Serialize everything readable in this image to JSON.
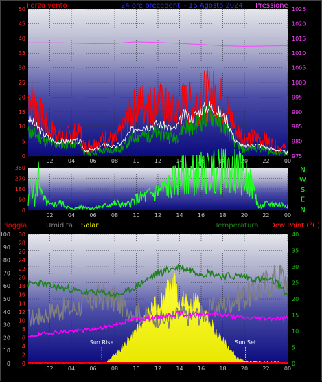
{
  "header": {
    "wind_title": "Forza vento",
    "date_title": "24 ore precedenti - 16 Agosto 2024",
    "pressure_title": "Pressione",
    "rain_title": "Pioggia",
    "humidity_title": "Umidita",
    "solar_title": "Solar",
    "temperature_title": "Temperatura",
    "dewpoint_title": "Dew Point (°C)"
  },
  "colors": {
    "wind": "#ff0000",
    "gust_avg": "#ffffff",
    "wind_avg": "#00a000",
    "pressure": "#ff40ff",
    "direction": "#22ff22",
    "rain": "#ff0000",
    "humidity": "#808080",
    "solar": "#ffff00",
    "temperature": "#208020",
    "dewpoint": "#ff00ff"
  },
  "chart_data": [
    {
      "type": "line",
      "name": "wind_pressure",
      "x_ticks": [
        "02",
        "04",
        "06",
        "08",
        "10",
        "12",
        "14",
        "16",
        "18",
        "20",
        "22",
        "00"
      ],
      "left_axis": {
        "label": "Forza vento",
        "range": [
          0,
          50
        ],
        "ticks": [
          0,
          5,
          10,
          15,
          20,
          25,
          30,
          35,
          40,
          45,
          50
        ]
      },
      "right_axis": {
        "label": "Pressione",
        "range": [
          975,
          1025
        ],
        "ticks": [
          975,
          980,
          985,
          990,
          995,
          1000,
          1005,
          1010,
          1015,
          1020,
          1025
        ]
      },
      "series": [
        {
          "name": "Forza vento",
          "axis": "left",
          "points": [
            [
              0,
              20
            ],
            [
              0.8,
              16
            ],
            [
              1.6,
              10
            ],
            [
              2.4,
              8
            ],
            [
              3.2,
              6
            ],
            [
              4.0,
              7
            ],
            [
              4.8,
              8
            ],
            [
              5.2,
              3
            ],
            [
              6.0,
              4
            ],
            [
              7.2,
              6
            ],
            [
              8.0,
              5
            ],
            [
              8.8,
              9
            ],
            [
              9.6,
              15
            ],
            [
              10.4,
              18
            ],
            [
              11.2,
              17
            ],
            [
              12.0,
              18
            ],
            [
              12.8,
              16
            ],
            [
              13.6,
              14
            ],
            [
              14.4,
              18
            ],
            [
              15.2,
              17
            ],
            [
              16.0,
              20
            ],
            [
              16.8,
              21
            ],
            [
              17.6,
              20
            ],
            [
              18.4,
              16
            ],
            [
              19.2,
              9
            ],
            [
              20.0,
              6
            ],
            [
              21.0,
              6
            ],
            [
              22.0,
              5
            ],
            [
              23.0,
              3
            ],
            [
              24.0,
              2
            ]
          ]
        },
        {
          "name": "Gust avg",
          "axis": "left",
          "points": [
            [
              0,
              13
            ],
            [
              0.8,
              10
            ],
            [
              1.6,
              7
            ],
            [
              2.4,
              5
            ],
            [
              3.2,
              5
            ],
            [
              4.0,
              5
            ],
            [
              4.8,
              5
            ],
            [
              5.2,
              2
            ],
            [
              6.0,
              2
            ],
            [
              7.2,
              4
            ],
            [
              8.0,
              3
            ],
            [
              8.8,
              5
            ],
            [
              9.6,
              9
            ],
            [
              10.4,
              10
            ],
            [
              11.2,
              10
            ],
            [
              12.0,
              11
            ],
            [
              12.8,
              10
            ],
            [
              13.6,
              9
            ],
            [
              14.4,
              14
            ],
            [
              15.2,
              13
            ],
            [
              16.0,
              16
            ],
            [
              16.8,
              17
            ],
            [
              17.6,
              15
            ],
            [
              18.4,
              12
            ],
            [
              19.2,
              5
            ],
            [
              20.0,
              3
            ],
            [
              21.0,
              4
            ],
            [
              22.0,
              3
            ],
            [
              23.0,
              2
            ],
            [
              24.0,
              1
            ]
          ]
        },
        {
          "name": "Wind avg",
          "axis": "left",
          "points": [
            [
              0,
              8
            ],
            [
              0.8,
              7
            ],
            [
              1.6,
              5
            ],
            [
              2.4,
              4
            ],
            [
              3.2,
              4
            ],
            [
              4.0,
              4
            ],
            [
              4.8,
              4
            ],
            [
              5.2,
              1
            ],
            [
              6.0,
              1
            ],
            [
              7.2,
              2
            ],
            [
              8.0,
              2
            ],
            [
              8.8,
              3
            ],
            [
              9.6,
              6
            ],
            [
              10.4,
              7
            ],
            [
              11.2,
              7
            ],
            [
              12.0,
              8
            ],
            [
              12.8,
              7
            ],
            [
              13.6,
              6
            ],
            [
              14.4,
              10
            ],
            [
              15.2,
              10
            ],
            [
              16.0,
              12
            ],
            [
              16.8,
              14
            ],
            [
              17.6,
              12
            ],
            [
              18.4,
              9
            ],
            [
              19.2,
              4
            ],
            [
              20.0,
              2
            ],
            [
              21.0,
              3
            ],
            [
              22.0,
              2
            ],
            [
              23.0,
              1
            ],
            [
              24.0,
              1
            ]
          ]
        },
        {
          "name": "Pressione",
          "axis": "right",
          "points": [
            [
              0,
              1013.5
            ],
            [
              3,
              1013.5
            ],
            [
              6,
              1013.2
            ],
            [
              8,
              1013.3
            ],
            [
              10,
              1013.8
            ],
            [
              12,
              1013.6
            ],
            [
              14,
              1013.3
            ],
            [
              16,
              1012.9
            ],
            [
              18,
              1012.5
            ],
            [
              20,
              1012.3
            ],
            [
              22,
              1012.4
            ],
            [
              24,
              1012.5
            ]
          ]
        }
      ]
    },
    {
      "type": "line",
      "name": "wind_direction",
      "x_ticks": [
        "02",
        "04",
        "06",
        "08",
        "10",
        "12",
        "14",
        "16",
        "18",
        "20",
        "22",
        "00"
      ],
      "left_axis": {
        "range": [
          0,
          360
        ],
        "ticks": [
          0,
          90,
          180,
          270,
          360
        ]
      },
      "right_axis": {
        "labels": [
          "N",
          "W",
          "S",
          "E",
          "N"
        ]
      },
      "series": [
        {
          "name": "Direction",
          "points": [
            [
              0,
              40
            ],
            [
              0.3,
              280
            ],
            [
              0.6,
              60
            ],
            [
              1.0,
              330
            ],
            [
              1.3,
              100
            ],
            [
              2.0,
              40
            ],
            [
              3.0,
              60
            ],
            [
              4.0,
              10
            ],
            [
              5.0,
              30
            ],
            [
              6.0,
              15
            ],
            [
              7.0,
              35
            ],
            [
              8.0,
              60
            ],
            [
              9.0,
              40
            ],
            [
              10.0,
              90
            ],
            [
              11.0,
              120
            ],
            [
              12.0,
              160
            ],
            [
              13.0,
              200
            ],
            [
              14.0,
              290
            ],
            [
              15.0,
              300
            ],
            [
              16.0,
              310
            ],
            [
              17.0,
              320
            ],
            [
              18.0,
              330
            ],
            [
              19.0,
              330
            ],
            [
              20.0,
              300
            ],
            [
              21.0,
              150
            ],
            [
              21.3,
              20
            ],
            [
              22.0,
              50
            ],
            [
              23.0,
              50
            ],
            [
              24.0,
              50
            ]
          ]
        }
      ]
    },
    {
      "type": "line",
      "name": "rain_humidity_solar_temperature",
      "x_ticks": [
        "02",
        "04",
        "06",
        "08",
        "10",
        "12",
        "14",
        "16",
        "18",
        "20",
        "22",
        "00"
      ],
      "far_left_axis": {
        "label": "Umidita",
        "range": [
          0,
          100
        ],
        "ticks": [
          0,
          10,
          20,
          30,
          40,
          50,
          60,
          70,
          80,
          90,
          100
        ]
      },
      "left_axis": {
        "label": "Pioggia",
        "range": [
          0,
          30
        ],
        "ticks": [
          0,
          2,
          4,
          6,
          8,
          10,
          12,
          14,
          16,
          18,
          20,
          22,
          24,
          26,
          28,
          30
        ]
      },
      "right_axis": {
        "label": "Temperatura",
        "range": [
          0,
          40
        ],
        "ticks": [
          0,
          5,
          10,
          15,
          20,
          25,
          30,
          35,
          40
        ]
      },
      "annotations": [
        {
          "label": "Sun Rise",
          "x": 6.8
        },
        {
          "label": "Sun Set",
          "x": 20.1
        }
      ],
      "series": [
        {
          "name": "Temperatura",
          "axis": "right",
          "points": [
            [
              0,
              24.5
            ],
            [
              1,
              25
            ],
            [
              2,
              24
            ],
            [
              3,
              23.5
            ],
            [
              4,
              23
            ],
            [
              5,
              22
            ],
            [
              6,
              22
            ],
            [
              7,
              22
            ],
            [
              8,
              21
            ],
            [
              9,
              22
            ],
            [
              10,
              24
            ],
            [
              11,
              26
            ],
            [
              12,
              28
            ],
            [
              13,
              29
            ],
            [
              14,
              30
            ],
            [
              15,
              29
            ],
            [
              16,
              28
            ],
            [
              17,
              28
            ],
            [
              18,
              27
            ],
            [
              19,
              27
            ],
            [
              20,
              27
            ],
            [
              21,
              26
            ],
            [
              22,
              26
            ],
            [
              23,
              25
            ],
            [
              24,
              21
            ]
          ]
        },
        {
          "name": "Dew Point",
          "axis": "right",
          "points": [
            [
              0,
              8
            ],
            [
              1,
              9
            ],
            [
              2,
              9.5
            ],
            [
              3,
              9.8
            ],
            [
              4,
              10
            ],
            [
              5,
              10.2
            ],
            [
              6,
              10.6
            ],
            [
              7,
              11
            ],
            [
              8,
              12
            ],
            [
              9,
              13
            ],
            [
              10,
              13.8
            ],
            [
              11,
              14
            ],
            [
              12,
              14.2
            ],
            [
              13,
              15
            ],
            [
              14,
              15.5
            ],
            [
              15,
              15
            ],
            [
              16,
              15.5
            ],
            [
              17,
              15.5
            ],
            [
              18,
              15
            ],
            [
              19,
              14.5
            ],
            [
              20,
              14
            ],
            [
              21,
              14
            ],
            [
              22,
              14
            ],
            [
              23,
              14
            ],
            [
              24,
              14
            ]
          ]
        },
        {
          "name": "Umidita",
          "axis": "far_left",
          "points": [
            [
              0,
              35
            ],
            [
              1,
              36
            ],
            [
              2,
              40
            ],
            [
              3,
              42
            ],
            [
              4,
              42
            ],
            [
              5,
              45
            ],
            [
              6,
              48
            ],
            [
              7,
              52
            ],
            [
              8,
              48
            ],
            [
              9,
              44
            ],
            [
              10,
              40
            ],
            [
              11,
              36
            ],
            [
              12,
              35
            ],
            [
              13,
              33
            ],
            [
              14,
              38
            ],
            [
              15,
              36
            ],
            [
              16,
              38
            ],
            [
              17,
              42
            ],
            [
              18,
              45
            ],
            [
              19,
              50
            ],
            [
              20,
              52
            ],
            [
              21,
              55
            ],
            [
              22,
              62
            ],
            [
              23,
              66
            ],
            [
              24,
              67
            ]
          ]
        },
        {
          "name": "Solar",
          "axis": "temperature_scale",
          "points": [
            [
              0,
              0
            ],
            [
              6.8,
              0
            ],
            [
              7.5,
              1
            ],
            [
              8.5,
              4
            ],
            [
              9.5,
              8
            ],
            [
              10.5,
              12
            ],
            [
              11.5,
              17
            ],
            [
              12.2,
              19
            ],
            [
              12.8,
              22
            ],
            [
              13.3,
              25
            ],
            [
              13.6,
              24
            ],
            [
              14.0,
              18
            ],
            [
              14.5,
              20
            ],
            [
              15.0,
              17
            ],
            [
              15.5,
              20
            ],
            [
              16.0,
              15
            ],
            [
              16.5,
              14
            ],
            [
              17.0,
              12
            ],
            [
              17.5,
              9
            ],
            [
              18.0,
              7
            ],
            [
              18.5,
              5
            ],
            [
              19.0,
              3
            ],
            [
              19.5,
              1.5
            ],
            [
              20.1,
              0.5
            ],
            [
              24,
              0
            ]
          ]
        },
        {
          "name": "Pioggia",
          "axis": "left",
          "points": [
            [
              0,
              0
            ],
            [
              24,
              0
            ]
          ]
        }
      ]
    }
  ]
}
